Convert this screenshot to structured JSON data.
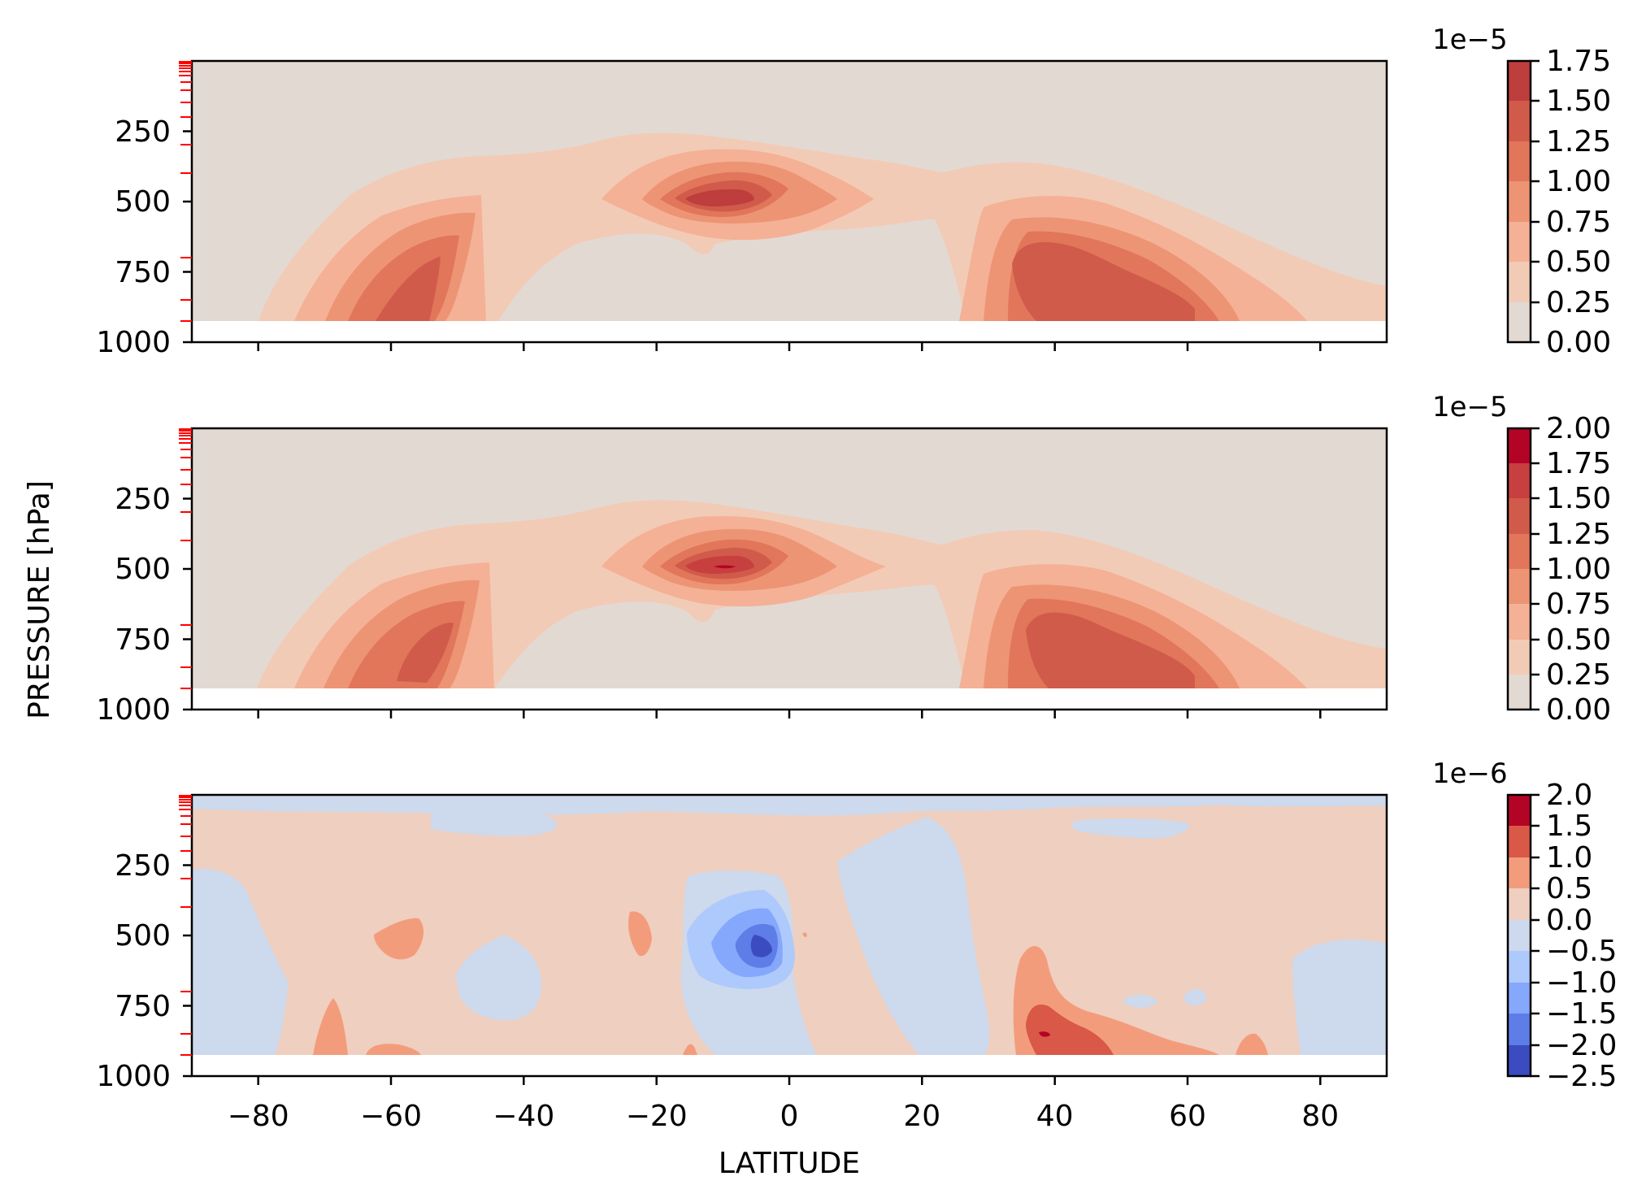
{
  "chart_data": {
    "type": "contour",
    "shared_x": {
      "label": "LATITUDE",
      "range": [
        -90,
        90
      ],
      "ticks": [
        -80,
        -60,
        -40,
        -20,
        0,
        20,
        40,
        60,
        80
      ],
      "tick_labels": [
        "−80",
        "−60",
        "−40",
        "−20",
        "0",
        "20",
        "40",
        "60",
        "80"
      ]
    },
    "shared_y": {
      "label": "PRESSURE [hPa]",
      "range": [
        1000,
        0
      ],
      "inverted": true,
      "ticks": [
        250,
        500,
        750,
        1000
      ],
      "tick_labels": [
        "250",
        "500",
        "750",
        "1000"
      ],
      "minor_ticks_color": "#ff0000",
      "minor_ticks": [
        3,
        7,
        12,
        18,
        25,
        35,
        50,
        70,
        100,
        150,
        200,
        300,
        400,
        700,
        850,
        925
      ]
    },
    "surface_level_hpa": 925,
    "panels": [
      {
        "id": "top",
        "colorbar": {
          "exponent": "1e−5",
          "levels": [
            0.0,
            0.25,
            0.5,
            0.75,
            1.0,
            1.25,
            1.5,
            1.75
          ],
          "tick_labels": [
            "0.00",
            "0.25",
            "0.50",
            "0.75",
            "1.00",
            "1.25",
            "1.50",
            "1.75"
          ],
          "colors": [
            "#e3d9d3",
            "#f2cbb7",
            "#f4b196",
            "#ed9474",
            "#e1765b",
            "#d15b4a",
            "#bd3e3c"
          ]
        },
        "features": [
          {
            "kind": "max",
            "lat": -10,
            "p": 500,
            "value": 1.6
          },
          {
            "kind": "max",
            "lat": -57,
            "p": 850,
            "value": 1.3
          },
          {
            "kind": "max",
            "lat": 45,
            "p": 850,
            "value": 1.3
          }
        ]
      },
      {
        "id": "middle",
        "colorbar": {
          "exponent": "1e−5",
          "levels": [
            0.0,
            0.25,
            0.5,
            0.75,
            1.0,
            1.25,
            1.5,
            1.75,
            2.0
          ],
          "tick_labels": [
            "0.00",
            "0.25",
            "0.50",
            "0.75",
            "1.00",
            "1.25",
            "1.50",
            "1.75",
            "2.00"
          ],
          "colors": [
            "#e3d9d3",
            "#f2cbb7",
            "#f4b196",
            "#ed9474",
            "#e1765b",
            "#d15b4a",
            "#c73f3f",
            "#b40426"
          ]
        },
        "features": [
          {
            "kind": "max",
            "lat": -9,
            "p": 500,
            "value": 1.85
          },
          {
            "kind": "max",
            "lat": -57,
            "p": 820,
            "value": 1.3
          },
          {
            "kind": "max",
            "lat": 45,
            "p": 850,
            "value": 1.3
          }
        ]
      },
      {
        "id": "bottom",
        "colorbar": {
          "exponent": "1e−6",
          "levels": [
            -2.5,
            -2.0,
            -1.5,
            -1.0,
            -0.5,
            0.0,
            0.5,
            1.0,
            1.5,
            2.0
          ],
          "tick_labels": [
            "−2.5",
            "−2.0",
            "−1.5",
            "−1.0",
            "−0.5",
            "0.0",
            "0.5",
            "1.0",
            "1.5",
            "2.0"
          ],
          "colors": [
            "#3b4cc0",
            "#5e7de7",
            "#85a8fc",
            "#aec9fc",
            "#cdd9ec",
            "#efcfbf",
            "#f39c7c",
            "#d95847",
            "#b40426"
          ]
        },
        "features": [
          {
            "kind": "min",
            "lat": -4,
            "p": 500,
            "value": -2.3
          },
          {
            "kind": "max",
            "lat": 41,
            "p": 870,
            "value": 1.9
          }
        ]
      }
    ]
  }
}
